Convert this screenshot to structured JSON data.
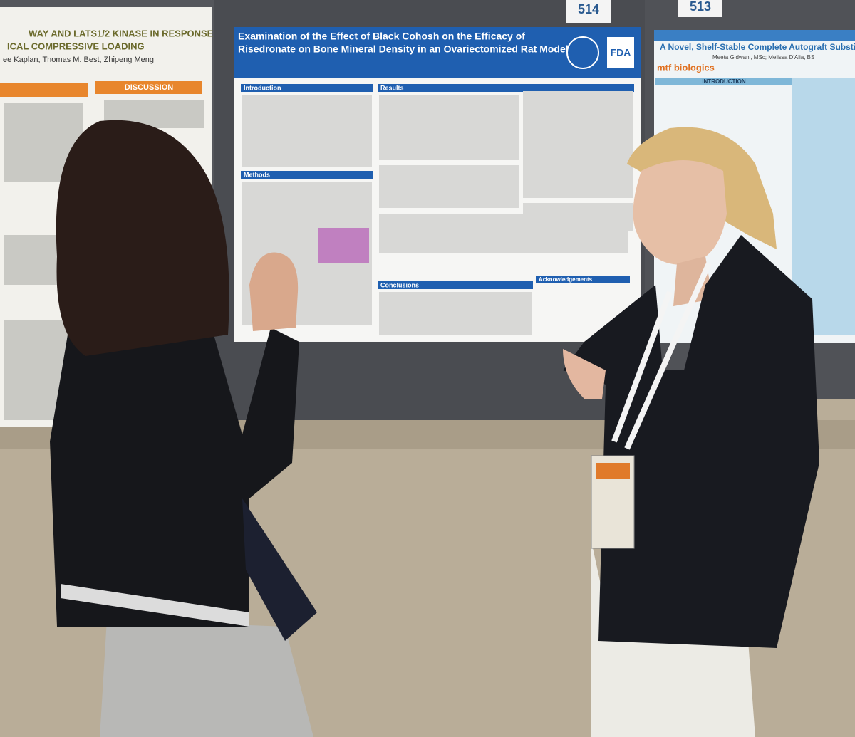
{
  "booths": [
    "514",
    "513"
  ],
  "left_poster": {
    "title_lines": [
      "WAY AND LATS1/2 KINASE IN RESPONSE",
      "ICAL COMPRESSIVE LOADING"
    ],
    "authors": "ee Kaplan, Thomas M. Best, Zhipeng Meng",
    "section": "DISCUSSION"
  },
  "center_poster": {
    "title_lines": [
      "Examination of the Effect of Black Cohosh on the Efficacy of",
      "Risedronate on Bone Mineral Density in an Ovariectomized Rat Model"
    ],
    "logo": "FDA",
    "sections": [
      "Introduction",
      "Results",
      "Methods",
      "Conclusions",
      "Acknowledgements"
    ]
  },
  "right_poster": {
    "title": "A Novel, Shelf-Stable Complete Autograft Substitu",
    "authors": "Meeta Gidwani, MSc; Melissa D'Alia, BS",
    "logo": "mtf biologics",
    "section": "INTRODUCTION"
  }
}
